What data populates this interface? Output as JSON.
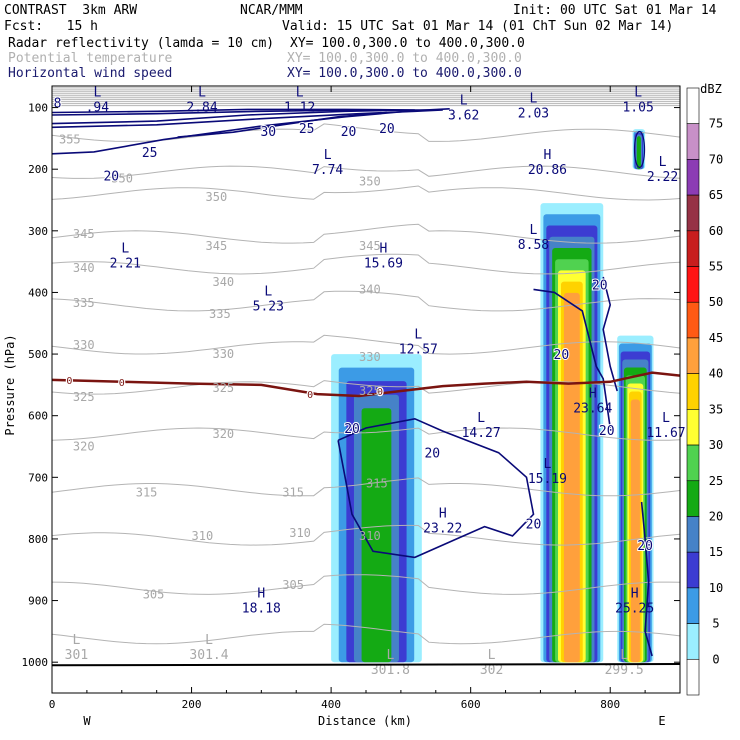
{
  "header": {
    "line1_left": "CONTRAST  3km ARW",
    "line1_mid": "NCAR/MMM",
    "line1_right": "Init: 00 UTC Sat 01 Mar 14",
    "line2_left": "Fcst:   15 h",
    "line2_right": "Valid: 15 UTC Sat 01 Mar 14 (01 ChT Sun 02 Mar 14)",
    "fields": [
      {
        "name": "Radar reflectivity (lamda = 10 cm)",
        "xy": "XY= 100.0,300.0 to 400.0,300.0",
        "color": "#000000"
      },
      {
        "name": "Potential temperature",
        "xy": "XY= 100.0,300.0 to 400.0,300.0",
        "color": "#b0b0b0"
      },
      {
        "name": "Horizontal wind speed",
        "xy": "XY= 100.0,300.0 to 400.0,300.0",
        "color": "#1a1a6e"
      }
    ]
  },
  "chart_data": {
    "type": "heatmap",
    "xlabel": "Distance (km)",
    "ylabel": "Pressure (hPa)",
    "xlim": [
      0,
      900
    ],
    "ylim": [
      1050,
      65
    ],
    "x_ticks": [
      0,
      200,
      400,
      600,
      800
    ],
    "y_ticks": [
      100,
      200,
      300,
      400,
      500,
      600,
      700,
      800,
      900,
      1000
    ],
    "x_end_labels": {
      "left": "W",
      "right": "E"
    },
    "colorbar": {
      "unit": "dBZ",
      "levels": [
        75,
        70,
        65,
        60,
        55,
        50,
        45,
        40,
        35,
        30,
        25,
        20,
        15,
        10,
        5,
        0
      ],
      "colors": [
        "#ffffff",
        "#c890c8",
        "#8c3cb4",
        "#963246",
        "#c81e1e",
        "#ff1414",
        "#ff5a14",
        "#ffa03c",
        "#ffd200",
        "#ffff32",
        "#50d250",
        "#14aa14",
        "#4682c8",
        "#3c3cd2",
        "#3c9be6",
        "#9beeff",
        "#ffffff"
      ]
    },
    "reflectivity_cells": [
      {
        "x0": 400,
        "x1": 530,
        "p_top": 500,
        "p_bot": 1000,
        "max_dbz": 20
      },
      {
        "x0": 700,
        "x1": 790,
        "p_top": 255,
        "p_bot": 1000,
        "max_dbz": 40
      },
      {
        "x0": 810,
        "x1": 862,
        "p_top": 470,
        "p_bot": 1000,
        "max_dbz": 40
      },
      {
        "x0": 832,
        "x1": 850,
        "p_top": 135,
        "p_bot": 200,
        "max_dbz": 20
      }
    ],
    "freezing_level": {
      "label": "0",
      "x": [
        0,
        100,
        200,
        300,
        380,
        440,
        500,
        560,
        620,
        680,
        740,
        800,
        860,
        900
      ],
      "p": [
        542,
        545,
        548,
        550,
        565,
        568,
        560,
        552,
        548,
        545,
        548,
        545,
        530,
        535
      ]
    },
    "theta_labels": [
      {
        "t": "355",
        "x": 10,
        "p": 152
      },
      {
        "t": "350",
        "x": 85,
        "p": 215
      },
      {
        "t": "350",
        "x": 220,
        "p": 245
      },
      {
        "t": "350",
        "x": 440,
        "p": 220
      },
      {
        "t": "345",
        "x": 30,
        "p": 305
      },
      {
        "t": "345",
        "x": 220,
        "p": 325
      },
      {
        "t": "345",
        "x": 440,
        "p": 325
      },
      {
        "t": "340",
        "x": 30,
        "p": 360
      },
      {
        "t": "340",
        "x": 230,
        "p": 383
      },
      {
        "t": "340",
        "x": 440,
        "p": 395
      },
      {
        "t": "335",
        "x": 30,
        "p": 417
      },
      {
        "t": "335",
        "x": 225,
        "p": 435
      },
      {
        "t": "330",
        "x": 30,
        "p": 485
      },
      {
        "t": "330",
        "x": 230,
        "p": 500
      },
      {
        "t": "330",
        "x": 440,
        "p": 505
      },
      {
        "t": "325",
        "x": 230,
        "p": 555
      },
      {
        "t": "325",
        "x": 440,
        "p": 560
      },
      {
        "t": "325",
        "x": 30,
        "p": 570
      },
      {
        "t": "320",
        "x": 30,
        "p": 650
      },
      {
        "t": "320",
        "x": 230,
        "p": 630
      },
      {
        "t": "315",
        "x": 120,
        "p": 725
      },
      {
        "t": "315",
        "x": 330,
        "p": 725
      },
      {
        "t": "315",
        "x": 450,
        "p": 710
      },
      {
        "t": "310",
        "x": 200,
        "p": 795
      },
      {
        "t": "310",
        "x": 340,
        "p": 790
      },
      {
        "t": "310",
        "x": 440,
        "p": 795
      },
      {
        "t": "305",
        "x": 130,
        "p": 890
      },
      {
        "t": "305",
        "x": 330,
        "p": 875
      }
    ],
    "extrema": [
      {
        "type": "L",
        "value": ".94",
        "x": 65,
        "p": 87,
        "field": "wind"
      },
      {
        "type": "L",
        "value": "2.84",
        "x": 215,
        "p": 87,
        "field": "wind"
      },
      {
        "type": "L",
        "value": "1.12",
        "x": 355,
        "p": 87,
        "field": "wind"
      },
      {
        "type": "L",
        "value": "3.62",
        "x": 590,
        "p": 100,
        "field": "wind"
      },
      {
        "type": "L",
        "value": "2.03",
        "x": 690,
        "p": 97,
        "field": "wind"
      },
      {
        "type": "L",
        "value": "1.05",
        "x": 840,
        "p": 87,
        "field": "wind"
      },
      {
        "type": "L",
        "value": "7.74",
        "x": 395,
        "p": 188,
        "field": "wind"
      },
      {
        "type": "H",
        "value": "20.86",
        "x": 710,
        "p": 188,
        "field": "wind"
      },
      {
        "type": "L",
        "value": "2.22",
        "x": 875,
        "p": 200,
        "field": "wind"
      },
      {
        "type": "L",
        "value": "8.58",
        "x": 690,
        "p": 310,
        "field": "wind"
      },
      {
        "type": "L",
        "value": "2.21",
        "x": 105,
        "p": 340,
        "field": "wind"
      },
      {
        "type": "H",
        "value": "15.69",
        "x": 475,
        "p": 340,
        "field": "wind"
      },
      {
        "type": "L",
        "value": "5.23",
        "x": 310,
        "p": 410,
        "field": "wind"
      },
      {
        "type": "L",
        "value": "12.57",
        "x": 525,
        "p": 480,
        "field": "wind"
      },
      {
        "type": "H",
        "value": "23.64",
        "x": 775,
        "p": 575,
        "field": "wind"
      },
      {
        "type": "L",
        "value": "14.27",
        "x": 615,
        "p": 615,
        "field": "wind"
      },
      {
        "type": "L",
        "value": "11.67",
        "x": 880,
        "p": 615,
        "field": "wind"
      },
      {
        "type": "L",
        "value": "15.19",
        "x": 710,
        "p": 690,
        "field": "wind"
      },
      {
        "type": "H",
        "value": "23.22",
        "x": 560,
        "p": 770,
        "field": "wind"
      },
      {
        "type": "H",
        "value": "18.18",
        "x": 300,
        "p": 900,
        "field": "wind"
      },
      {
        "type": "H",
        "value": "25.25",
        "x": 835,
        "p": 900,
        "field": "wind"
      },
      {
        "type": "L",
        "value": "301",
        "x": 35,
        "p": 975,
        "field": "theta"
      },
      {
        "type": "L",
        "value": "301.4",
        "x": 225,
        "p": 975,
        "field": "theta"
      },
      {
        "type": "L",
        "value": "301.8",
        "x": 485,
        "p": 1000,
        "field": "theta"
      },
      {
        "type": "L",
        "value": "302",
        "x": 630,
        "p": 1000,
        "field": "theta"
      },
      {
        "type": "L",
        "value": "299.5",
        "x": 820,
        "p": 1000,
        "field": "theta"
      }
    ],
    "wind_labels": [
      {
        "t": "8",
        "x": 8,
        "p": 92
      },
      {
        "t": "30",
        "x": 310,
        "p": 138
      },
      {
        "t": "25",
        "x": 365,
        "p": 133
      },
      {
        "t": "20",
        "x": 425,
        "p": 138
      },
      {
        "t": "20",
        "x": 480,
        "p": 133
      },
      {
        "t": "25",
        "x": 140,
        "p": 172
      },
      {
        "t": "20",
        "x": 85,
        "p": 210
      },
      {
        "t": "20",
        "x": 785,
        "p": 387
      },
      {
        "t": "20",
        "x": 730,
        "p": 500
      },
      {
        "t": "20",
        "x": 430,
        "p": 620
      },
      {
        "t": "20",
        "x": 545,
        "p": 660
      },
      {
        "t": "20",
        "x": 795,
        "p": 623
      },
      {
        "t": "20",
        "x": 690,
        "p": 775
      },
      {
        "t": "20",
        "x": 850,
        "p": 810
      }
    ]
  }
}
